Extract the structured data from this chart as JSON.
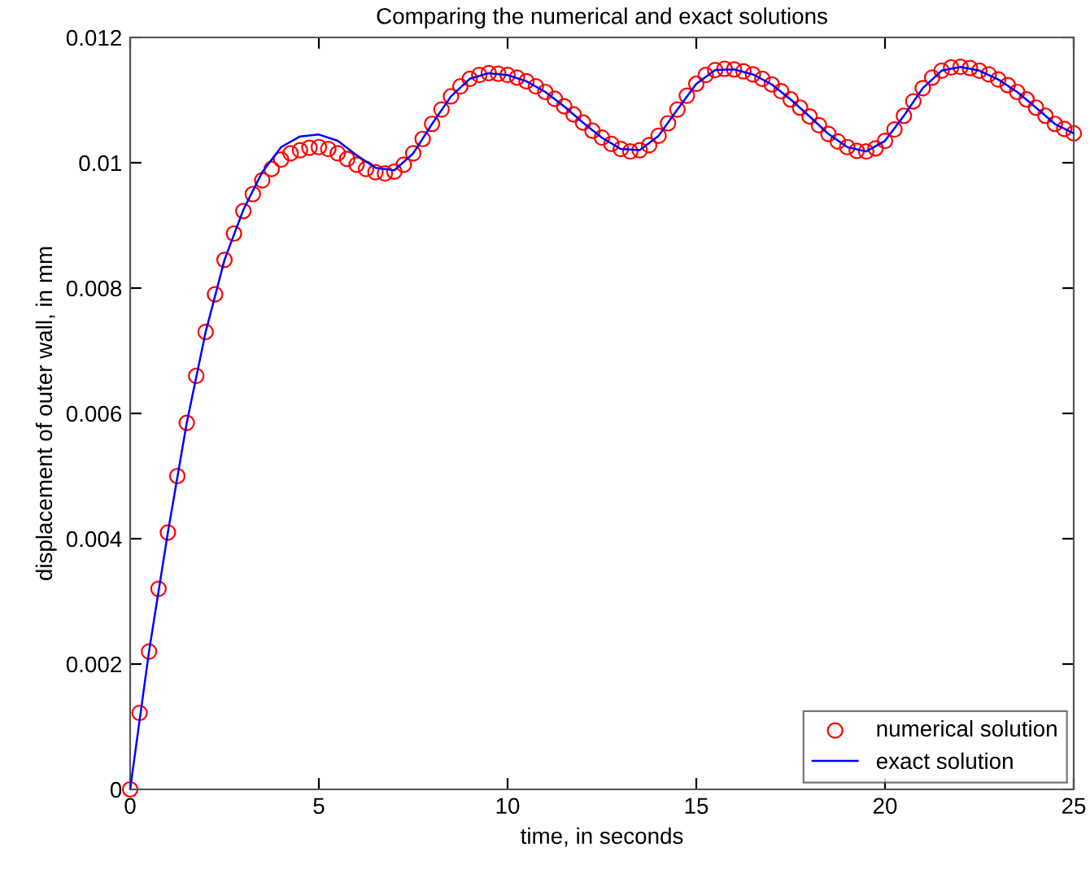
{
  "chart_data": {
    "type": "line",
    "title": "Comparing the numerical and exact solutions",
    "xlabel": "time, in seconds",
    "ylabel": "displacement of outer wall, in mm",
    "xlim": [
      0,
      25
    ],
    "ylim": [
      0,
      0.012
    ],
    "xticks": [
      0,
      5,
      10,
      15,
      20,
      25
    ],
    "yticks": [
      0,
      0.002,
      0.004,
      0.006,
      0.008,
      0.01,
      0.012
    ],
    "grid": false,
    "legend": "bottom right",
    "series": [
      {
        "name": "numerical solution",
        "type": "scatter",
        "marker": "circle",
        "color": "#ff0000",
        "x": [
          0,
          0.25,
          0.5,
          0.75,
          1,
          1.25,
          1.5,
          1.75,
          2,
          2.25,
          2.5,
          2.75,
          3,
          3.25,
          3.5,
          3.75,
          4,
          4.25,
          4.5,
          4.75,
          5,
          5.25,
          5.5,
          5.75,
          6,
          6.25,
          6.5,
          6.75,
          7,
          7.25,
          7.5,
          7.75,
          8,
          8.25,
          8.5,
          8.75,
          9,
          9.25,
          9.5,
          9.75,
          10,
          10.25,
          10.5,
          10.75,
          11,
          11.25,
          11.5,
          11.75,
          12,
          12.25,
          12.5,
          12.75,
          13,
          13.25,
          13.5,
          13.75,
          14,
          14.25,
          14.5,
          14.75,
          15,
          15.25,
          15.5,
          15.75,
          16,
          16.25,
          16.5,
          16.75,
          17,
          17.25,
          17.5,
          17.75,
          18,
          18.25,
          18.5,
          18.75,
          19,
          19.25,
          19.5,
          19.75,
          20,
          20.25,
          20.5,
          20.75,
          21,
          21.25,
          21.5,
          21.75,
          22,
          22.25,
          22.5,
          22.75,
          23,
          23.25,
          23.5,
          23.75,
          24,
          24.25,
          24.5,
          24.75,
          25
        ],
        "values": [
          0,
          0.00122,
          0.0022,
          0.0032,
          0.0041,
          0.005,
          0.00585,
          0.0066,
          0.0073,
          0.0079,
          0.00845,
          0.00887,
          0.00923,
          0.0095,
          0.00972,
          0.0099,
          0.01005,
          0.01015,
          0.0102,
          0.01024,
          0.01025,
          0.01022,
          0.01015,
          0.01006,
          0.00997,
          0.0099,
          0.00985,
          0.00983,
          0.00986,
          0.00997,
          0.01015,
          0.01038,
          0.01062,
          0.01085,
          0.01106,
          0.01122,
          0.01134,
          0.0114,
          0.01143,
          0.01142,
          0.0114,
          0.01136,
          0.0113,
          0.01122,
          0.01113,
          0.01102,
          0.0109,
          0.01077,
          0.01064,
          0.01051,
          0.0104,
          0.0103,
          0.01022,
          0.01018,
          0.0102,
          0.01028,
          0.01043,
          0.01063,
          0.01085,
          0.01107,
          0.01126,
          0.0114,
          0.01148,
          0.0115,
          0.01149,
          0.01146,
          0.01141,
          0.01134,
          0.01125,
          0.01114,
          0.01101,
          0.01088,
          0.01074,
          0.0106,
          0.01046,
          0.01034,
          0.01025,
          0.01019,
          0.01018,
          0.01023,
          0.01035,
          0.01053,
          0.01075,
          0.01098,
          0.01119,
          0.01136,
          0.01147,
          0.01152,
          0.01153,
          0.01151,
          0.01147,
          0.01141,
          0.01133,
          0.01124,
          0.01113,
          0.01101,
          0.01088,
          0.01075,
          0.01062,
          0.01054,
          0.01047
        ]
      },
      {
        "name": "exact solution",
        "marker": "none",
        "line_style": "solid",
        "color": "#0000ff",
        "x": [
          0,
          0.5,
          1,
          1.5,
          2,
          2.5,
          3,
          3.5,
          4,
          4.5,
          5,
          5.5,
          6,
          6.5,
          7,
          7.5,
          8,
          8.5,
          9,
          9.5,
          10,
          10.5,
          11,
          11.5,
          12,
          12.5,
          13,
          13.5,
          14,
          14.5,
          15,
          15.5,
          16,
          16.5,
          17,
          17.5,
          18,
          18.5,
          19,
          19.5,
          20,
          20.5,
          21,
          21.5,
          22,
          22.5,
          23,
          23.5,
          24,
          24.5,
          25
        ],
        "values": [
          0,
          0.0022,
          0.0041,
          0.00585,
          0.0073,
          0.00845,
          0.00925,
          0.00985,
          0.01025,
          0.01042,
          0.01045,
          0.01035,
          0.01012,
          0.00992,
          0.00988,
          0.01015,
          0.01062,
          0.01106,
          0.01134,
          0.01143,
          0.0114,
          0.0113,
          0.01113,
          0.0109,
          0.01064,
          0.0104,
          0.01022,
          0.0102,
          0.01043,
          0.01085,
          0.01126,
          0.01148,
          0.01149,
          0.01141,
          0.01125,
          0.01101,
          0.01074,
          0.01046,
          0.01025,
          0.01018,
          0.01035,
          0.01075,
          0.01119,
          0.01147,
          0.01153,
          0.01147,
          0.01133,
          0.01113,
          0.01088,
          0.01062,
          0.01047
        ]
      }
    ]
  }
}
